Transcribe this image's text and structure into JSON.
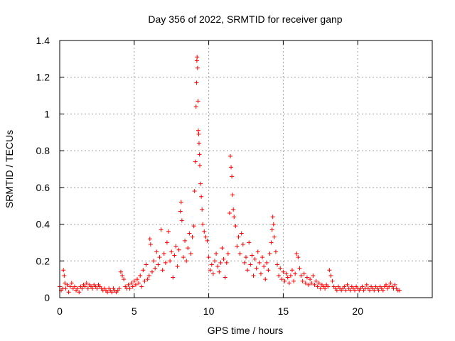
{
  "chart_data": {
    "type": "scatter",
    "title": "Day 356 of 2022, SRMTID for receiver ganp",
    "xlabel": "GPS time / hours",
    "ylabel": "SRMTID / TECUs",
    "xlim": [
      0,
      25
    ],
    "ylim": [
      0,
      1.4
    ],
    "grid": true,
    "marker": "+",
    "color": "#ff0000",
    "x_ticks": [
      0,
      5,
      10,
      15,
      20
    ],
    "x_tick_labels": [
      "0",
      "5",
      "10",
      "15",
      "20"
    ],
    "y_ticks": [
      0,
      0.2,
      0.4,
      0.6,
      0.8,
      1.0,
      1.2,
      1.4
    ],
    "y_tick_labels": [
      "0",
      "0.2",
      "0.4",
      "0.6",
      "0.8",
      "1",
      "1.2",
      "1.4"
    ],
    "series": [
      {
        "name": "SRMTID",
        "points": [
          [
            0.0,
            0.06
          ],
          [
            0.1,
            0.04
          ],
          [
            0.2,
            0.05
          ],
          [
            0.25,
            0.15
          ],
          [
            0.3,
            0.12
          ],
          [
            0.35,
            0.08
          ],
          [
            0.4,
            0.05
          ],
          [
            0.5,
            0.07
          ],
          [
            0.6,
            0.03
          ],
          [
            0.7,
            0.06
          ],
          [
            0.8,
            0.08
          ],
          [
            0.9,
            0.05
          ],
          [
            1.0,
            0.06
          ],
          [
            1.1,
            0.04
          ],
          [
            1.2,
            0.05
          ],
          [
            1.3,
            0.03
          ],
          [
            1.4,
            0.06
          ],
          [
            1.5,
            0.05
          ],
          [
            1.6,
            0.07
          ],
          [
            1.7,
            0.06
          ],
          [
            1.8,
            0.08
          ],
          [
            1.9,
            0.05
          ],
          [
            2.0,
            0.07
          ],
          [
            2.1,
            0.06
          ],
          [
            2.2,
            0.05
          ],
          [
            2.3,
            0.07
          ],
          [
            2.4,
            0.06
          ],
          [
            2.5,
            0.05
          ],
          [
            2.6,
            0.07
          ],
          [
            2.7,
            0.06
          ],
          [
            2.8,
            0.05
          ],
          [
            2.9,
            0.04
          ],
          [
            3.0,
            0.05
          ],
          [
            3.1,
            0.04
          ],
          [
            3.2,
            0.03
          ],
          [
            3.3,
            0.05
          ],
          [
            3.4,
            0.04
          ],
          [
            3.5,
            0.03
          ],
          [
            3.6,
            0.05
          ],
          [
            3.7,
            0.04
          ],
          [
            3.8,
            0.03
          ],
          [
            3.9,
            0.04
          ],
          [
            4.0,
            0.05
          ],
          [
            4.1,
            0.14
          ],
          [
            4.2,
            0.12
          ],
          [
            4.3,
            0.1
          ],
          [
            4.4,
            0.06
          ],
          [
            4.5,
            0.05
          ],
          [
            4.6,
            0.07
          ],
          [
            4.7,
            0.05
          ],
          [
            4.8,
            0.08
          ],
          [
            4.9,
            0.06
          ],
          [
            5.0,
            0.09
          ],
          [
            5.1,
            0.07
          ],
          [
            5.2,
            0.1
          ],
          [
            5.3,
            0.08
          ],
          [
            5.4,
            0.12
          ],
          [
            5.5,
            0.06
          ],
          [
            5.6,
            0.15
          ],
          [
            5.7,
            0.09
          ],
          [
            5.8,
            0.18
          ],
          [
            5.9,
            0.1
          ],
          [
            6.0,
            0.12
          ],
          [
            6.05,
            0.32
          ],
          [
            6.1,
            0.29
          ],
          [
            6.2,
            0.14
          ],
          [
            6.3,
            0.2
          ],
          [
            6.4,
            0.16
          ],
          [
            6.5,
            0.25
          ],
          [
            6.6,
            0.18
          ],
          [
            6.7,
            0.22
          ],
          [
            6.8,
            0.37
          ],
          [
            6.9,
            0.15
          ],
          [
            7.0,
            0.24
          ],
          [
            7.1,
            0.19
          ],
          [
            7.2,
            0.3
          ],
          [
            7.3,
            0.36
          ],
          [
            7.4,
            0.2
          ],
          [
            7.5,
            0.25
          ],
          [
            7.6,
            0.11
          ],
          [
            7.7,
            0.23
          ],
          [
            7.8,
            0.28
          ],
          [
            7.9,
            0.17
          ],
          [
            8.0,
            0.26
          ],
          [
            8.1,
            0.47
          ],
          [
            8.15,
            0.52
          ],
          [
            8.2,
            0.42
          ],
          [
            8.3,
            0.22
          ],
          [
            8.4,
            0.31
          ],
          [
            8.5,
            0.2
          ],
          [
            8.6,
            0.27
          ],
          [
            8.7,
            0.35
          ],
          [
            8.8,
            0.24
          ],
          [
            8.9,
            0.33
          ],
          [
            9.0,
            0.39
          ],
          [
            9.05,
            0.58
          ],
          [
            9.1,
            0.74
          ],
          [
            9.15,
            1.04
          ],
          [
            9.18,
            1.17
          ],
          [
            9.2,
            1.29
          ],
          [
            9.22,
            1.31
          ],
          [
            9.25,
            1.25
          ],
          [
            9.28,
            1.07
          ],
          [
            9.3,
            0.91
          ],
          [
            9.33,
            0.89
          ],
          [
            9.35,
            0.84
          ],
          [
            9.38,
            0.78
          ],
          [
            9.4,
            0.72
          ],
          [
            9.45,
            0.62
          ],
          [
            9.5,
            0.55
          ],
          [
            9.55,
            0.48
          ],
          [
            9.6,
            0.4
          ],
          [
            9.7,
            0.36
          ],
          [
            9.8,
            0.33
          ],
          [
            9.9,
            0.31
          ],
          [
            10.0,
            0.22
          ],
          [
            10.1,
            0.15
          ],
          [
            10.2,
            0.18
          ],
          [
            10.3,
            0.13
          ],
          [
            10.4,
            0.2
          ],
          [
            10.5,
            0.24
          ],
          [
            10.6,
            0.17
          ],
          [
            10.7,
            0.14
          ],
          [
            10.8,
            0.19
          ],
          [
            10.9,
            0.27
          ],
          [
            11.0,
            0.21
          ],
          [
            11.1,
            0.11
          ],
          [
            11.2,
            0.19
          ],
          [
            11.3,
            0.24
          ],
          [
            11.4,
            0.46
          ],
          [
            11.45,
            0.77
          ],
          [
            11.5,
            0.71
          ],
          [
            11.55,
            0.66
          ],
          [
            11.6,
            0.56
          ],
          [
            11.65,
            0.48
          ],
          [
            11.7,
            0.44
          ],
          [
            11.8,
            0.39
          ],
          [
            11.9,
            0.28
          ],
          [
            12.0,
            0.33
          ],
          [
            12.1,
            0.24
          ],
          [
            12.2,
            0.35
          ],
          [
            12.3,
            0.29
          ],
          [
            12.4,
            0.19
          ],
          [
            12.5,
            0.22
          ],
          [
            12.6,
            0.15
          ],
          [
            12.7,
            0.3
          ],
          [
            12.8,
            0.18
          ],
          [
            12.9,
            0.23
          ],
          [
            13.0,
            0.12
          ],
          [
            13.1,
            0.21
          ],
          [
            13.2,
            0.16
          ],
          [
            13.3,
            0.25
          ],
          [
            13.4,
            0.19
          ],
          [
            13.5,
            0.13
          ],
          [
            13.6,
            0.22
          ],
          [
            13.7,
            0.17
          ],
          [
            13.8,
            0.1
          ],
          [
            13.9,
            0.19
          ],
          [
            14.0,
            0.15
          ],
          [
            14.1,
            0.24
          ],
          [
            14.2,
            0.3
          ],
          [
            14.25,
            0.37
          ],
          [
            14.3,
            0.44
          ],
          [
            14.35,
            0.4
          ],
          [
            14.4,
            0.33
          ],
          [
            14.5,
            0.25
          ],
          [
            14.6,
            0.18
          ],
          [
            14.7,
            0.12
          ],
          [
            14.8,
            0.16
          ],
          [
            14.9,
            0.1
          ],
          [
            15.0,
            0.14
          ],
          [
            15.1,
            0.09
          ],
          [
            15.2,
            0.13
          ],
          [
            15.3,
            0.11
          ],
          [
            15.4,
            0.08
          ],
          [
            15.5,
            0.12
          ],
          [
            15.6,
            0.15
          ],
          [
            15.7,
            0.09
          ],
          [
            15.8,
            0.13
          ],
          [
            15.9,
            0.24
          ],
          [
            16.0,
            0.22
          ],
          [
            16.1,
            0.16
          ],
          [
            16.2,
            0.12
          ],
          [
            16.3,
            0.09
          ],
          [
            16.4,
            0.13
          ],
          [
            16.5,
            0.08
          ],
          [
            16.6,
            0.11
          ],
          [
            16.7,
            0.07
          ],
          [
            16.8,
            0.1
          ],
          [
            16.9,
            0.08
          ],
          [
            17.0,
            0.12
          ],
          [
            17.1,
            0.07
          ],
          [
            17.2,
            0.09
          ],
          [
            17.3,
            0.06
          ],
          [
            17.4,
            0.08
          ],
          [
            17.5,
            0.05
          ],
          [
            17.6,
            0.07
          ],
          [
            17.7,
            0.06
          ],
          [
            17.8,
            0.05
          ],
          [
            17.9,
            0.07
          ],
          [
            18.0,
            0.06
          ],
          [
            18.1,
            0.15
          ],
          [
            18.2,
            0.12
          ],
          [
            18.3,
            0.09
          ],
          [
            18.4,
            0.06
          ],
          [
            18.5,
            0.05
          ],
          [
            18.6,
            0.04
          ],
          [
            18.7,
            0.06
          ],
          [
            18.8,
            0.05
          ],
          [
            18.9,
            0.04
          ],
          [
            19.0,
            0.05
          ],
          [
            19.1,
            0.06
          ],
          [
            19.2,
            0.04
          ],
          [
            19.3,
            0.07
          ],
          [
            19.4,
            0.05
          ],
          [
            19.5,
            0.04
          ],
          [
            19.6,
            0.06
          ],
          [
            19.7,
            0.05
          ],
          [
            19.8,
            0.04
          ],
          [
            19.9,
            0.06
          ],
          [
            20.0,
            0.05
          ],
          [
            20.1,
            0.04
          ],
          [
            20.2,
            0.05
          ],
          [
            20.3,
            0.06
          ],
          [
            20.4,
            0.04
          ],
          [
            20.5,
            0.05
          ],
          [
            20.6,
            0.07
          ],
          [
            20.7,
            0.05
          ],
          [
            20.8,
            0.04
          ],
          [
            20.9,
            0.06
          ],
          [
            21.0,
            0.05
          ],
          [
            21.1,
            0.04
          ],
          [
            21.2,
            0.06
          ],
          [
            21.3,
            0.05
          ],
          [
            21.4,
            0.04
          ],
          [
            21.5,
            0.06
          ],
          [
            21.6,
            0.05
          ],
          [
            21.7,
            0.04
          ],
          [
            21.8,
            0.06
          ],
          [
            21.9,
            0.07
          ],
          [
            22.0,
            0.05
          ],
          [
            22.1,
            0.06
          ],
          [
            22.2,
            0.08
          ],
          [
            22.3,
            0.06
          ],
          [
            22.4,
            0.05
          ],
          [
            22.5,
            0.07
          ],
          [
            22.6,
            0.05
          ],
          [
            22.7,
            0.04
          ],
          [
            22.8,
            0.04
          ]
        ]
      }
    ]
  }
}
